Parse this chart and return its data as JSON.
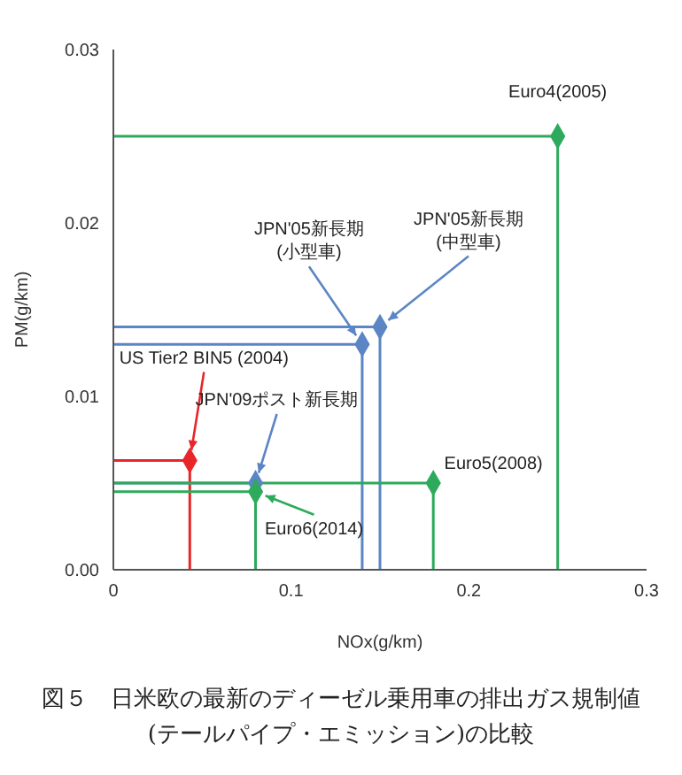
{
  "chart_data": {
    "type": "line",
    "title": "図５　日米欧の最新のディーゼル乗用車の排出ガス規制値\n(テールパイプ・エミッション)の比較",
    "xlabel": "NOx(g/km)",
    "ylabel": "PM(g/km)",
    "xlim": [
      0,
      0.3
    ],
    "xticks": [
      0,
      0.1,
      0.2,
      0.3
    ],
    "ylim": [
      0,
      0.03
    ],
    "yticks": [
      {
        "value": 0,
        "label": "0.00"
      },
      0.01,
      0.02,
      0.03
    ],
    "grid": false,
    "legend": false,
    "series": [
      {
        "color": "#e8262a",
        "marker": "none",
        "x": [
          0,
          0.043,
          0.043
        ],
        "values": [
          0.0063,
          0.0063,
          0
        ]
      },
      {
        "color": "#5b85c4",
        "marker": "none",
        "x": [
          0,
          0.08,
          0.08
        ],
        "values": [
          0.005,
          0.005,
          0
        ]
      },
      {
        "color": "#2eaa5c",
        "marker": "none",
        "x": [
          0,
          0.08,
          0.08
        ],
        "values": [
          0.0045,
          0.0045,
          0
        ]
      },
      {
        "color": "#5b85c4",
        "marker": "none",
        "x": [
          0,
          0.14,
          0.14
        ],
        "values": [
          0.013,
          0.013,
          0
        ]
      },
      {
        "color": "#5b85c4",
        "marker": "none",
        "x": [
          0,
          0.15,
          0.15
        ],
        "values": [
          0.014,
          0.014,
          0
        ]
      },
      {
        "color": "#2eaa5c",
        "marker": "none",
        "x": [
          0,
          0.18,
          0.18
        ],
        "values": [
          0.005,
          0.005,
          0
        ]
      },
      {
        "color": "#2eaa5c",
        "marker": "none",
        "x": [
          0,
          0.25,
          0.25
        ],
        "values": [
          0.025,
          0.025,
          0
        ]
      },
      {
        "type": "scatter",
        "marker": "diamond",
        "x": [
          0.043,
          0.08,
          0.08,
          0.14,
          0.15,
          0.18,
          0.25
        ],
        "values": [
          0.0063,
          0.005,
          0.0045,
          0.013,
          0.014,
          0.005,
          0.025
        ],
        "colors": [
          "#e8262a",
          "#5b85c4",
          "#2eaa5c",
          "#5b85c4",
          "#5b85c4",
          "#2eaa5c",
          "#2eaa5c"
        ]
      }
    ],
    "annotations": [
      {
        "text": "US Tier2 BIN5 (2004)",
        "x": 0.043,
        "y": 0.0063
      },
      {
        "text": "JPN'09ポスト新長期",
        "x": 0.08,
        "y": 0.005
      },
      {
        "text": "Euro6(2014)",
        "x": 0.08,
        "y": 0.0045
      },
      {
        "text": "JPN'05新長期\n(小型車)",
        "x": 0.14,
        "y": 0.013
      },
      {
        "text": "JPN'05新長期\n(中型車)",
        "x": 0.15,
        "y": 0.014
      },
      {
        "text": "Euro5(2008)",
        "x": 0.18,
        "y": 0.005
      },
      {
        "text": "Euro4(2005)",
        "x": 0.25,
        "y": 0.025
      }
    ]
  }
}
